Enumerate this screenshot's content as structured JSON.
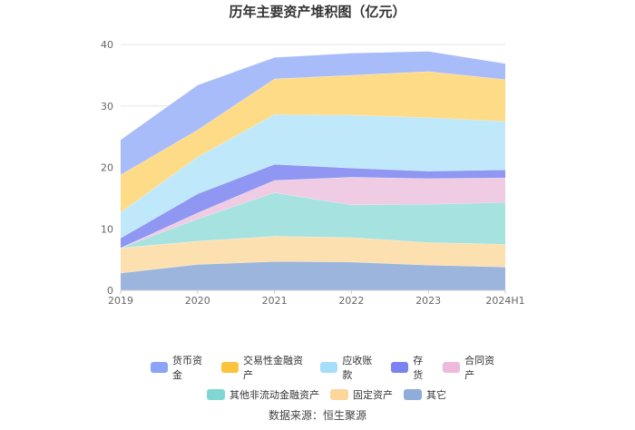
{
  "chart_data": {
    "type": "area",
    "stacked": true,
    "title": "历年主要资产堆积图（亿元）",
    "xlabel": "",
    "ylabel": "",
    "categories": [
      "2019",
      "2020",
      "2021",
      "2022",
      "2023",
      "2024H1"
    ],
    "yticks": [
      "0",
      "10",
      "20",
      "30",
      "40"
    ],
    "ylim": [
      0,
      40
    ],
    "grid": true,
    "legend_position": "bottom",
    "series": [
      {
        "name": "其它",
        "color": "#9bb5dd",
        "values": [
          2.8,
          4.2,
          4.7,
          4.6,
          4.1,
          3.8
        ]
      },
      {
        "name": "固定资产",
        "color": "#fde0b0",
        "values": [
          4.1,
          3.8,
          4.1,
          4.0,
          3.7,
          3.7
        ]
      },
      {
        "name": "其他非流动金融资产",
        "color": "#a6e2e0",
        "values": [
          0.0,
          3.6,
          7.1,
          5.3,
          6.2,
          6.8
        ]
      },
      {
        "name": "合同资产",
        "color": "#f0cce4",
        "values": [
          0.0,
          1.0,
          2.0,
          4.5,
          4.2,
          4.0
        ]
      },
      {
        "name": "存货",
        "color": "#8f97f2",
        "values": [
          1.6,
          3.1,
          2.6,
          1.5,
          1.2,
          1.3
        ]
      },
      {
        "name": "应收账款",
        "color": "#bfe8fb",
        "values": [
          4.2,
          6.0,
          8.1,
          8.6,
          8.7,
          7.9
        ]
      },
      {
        "name": "交易性金融资产",
        "color": "#fedb86",
        "values": [
          6.1,
          4.4,
          5.8,
          6.5,
          7.5,
          6.8
        ]
      },
      {
        "name": "货币资金",
        "color": "#a9bcfa",
        "values": [
          5.7,
          7.3,
          3.5,
          3.6,
          3.3,
          2.6
        ]
      }
    ],
    "legend": [
      [
        "货币资金",
        "交易性金融资产",
        "应收账款",
        "存货",
        "合同资产"
      ],
      [
        "其他非流动金融资产",
        "固定资产",
        "其它"
      ]
    ],
    "legend_colors": {
      "货币资金": "#8aa4f8",
      "交易性金融资产": "#fcc33d",
      "应收账款": "#a6def9",
      "存货": "#7b83f1",
      "合同资产": "#eebadc",
      "其他非流动金融资产": "#7fd6d3",
      "固定资产": "#fcd69a",
      "其它": "#90acd8"
    }
  },
  "source_text": "数据来源：恒生聚源"
}
